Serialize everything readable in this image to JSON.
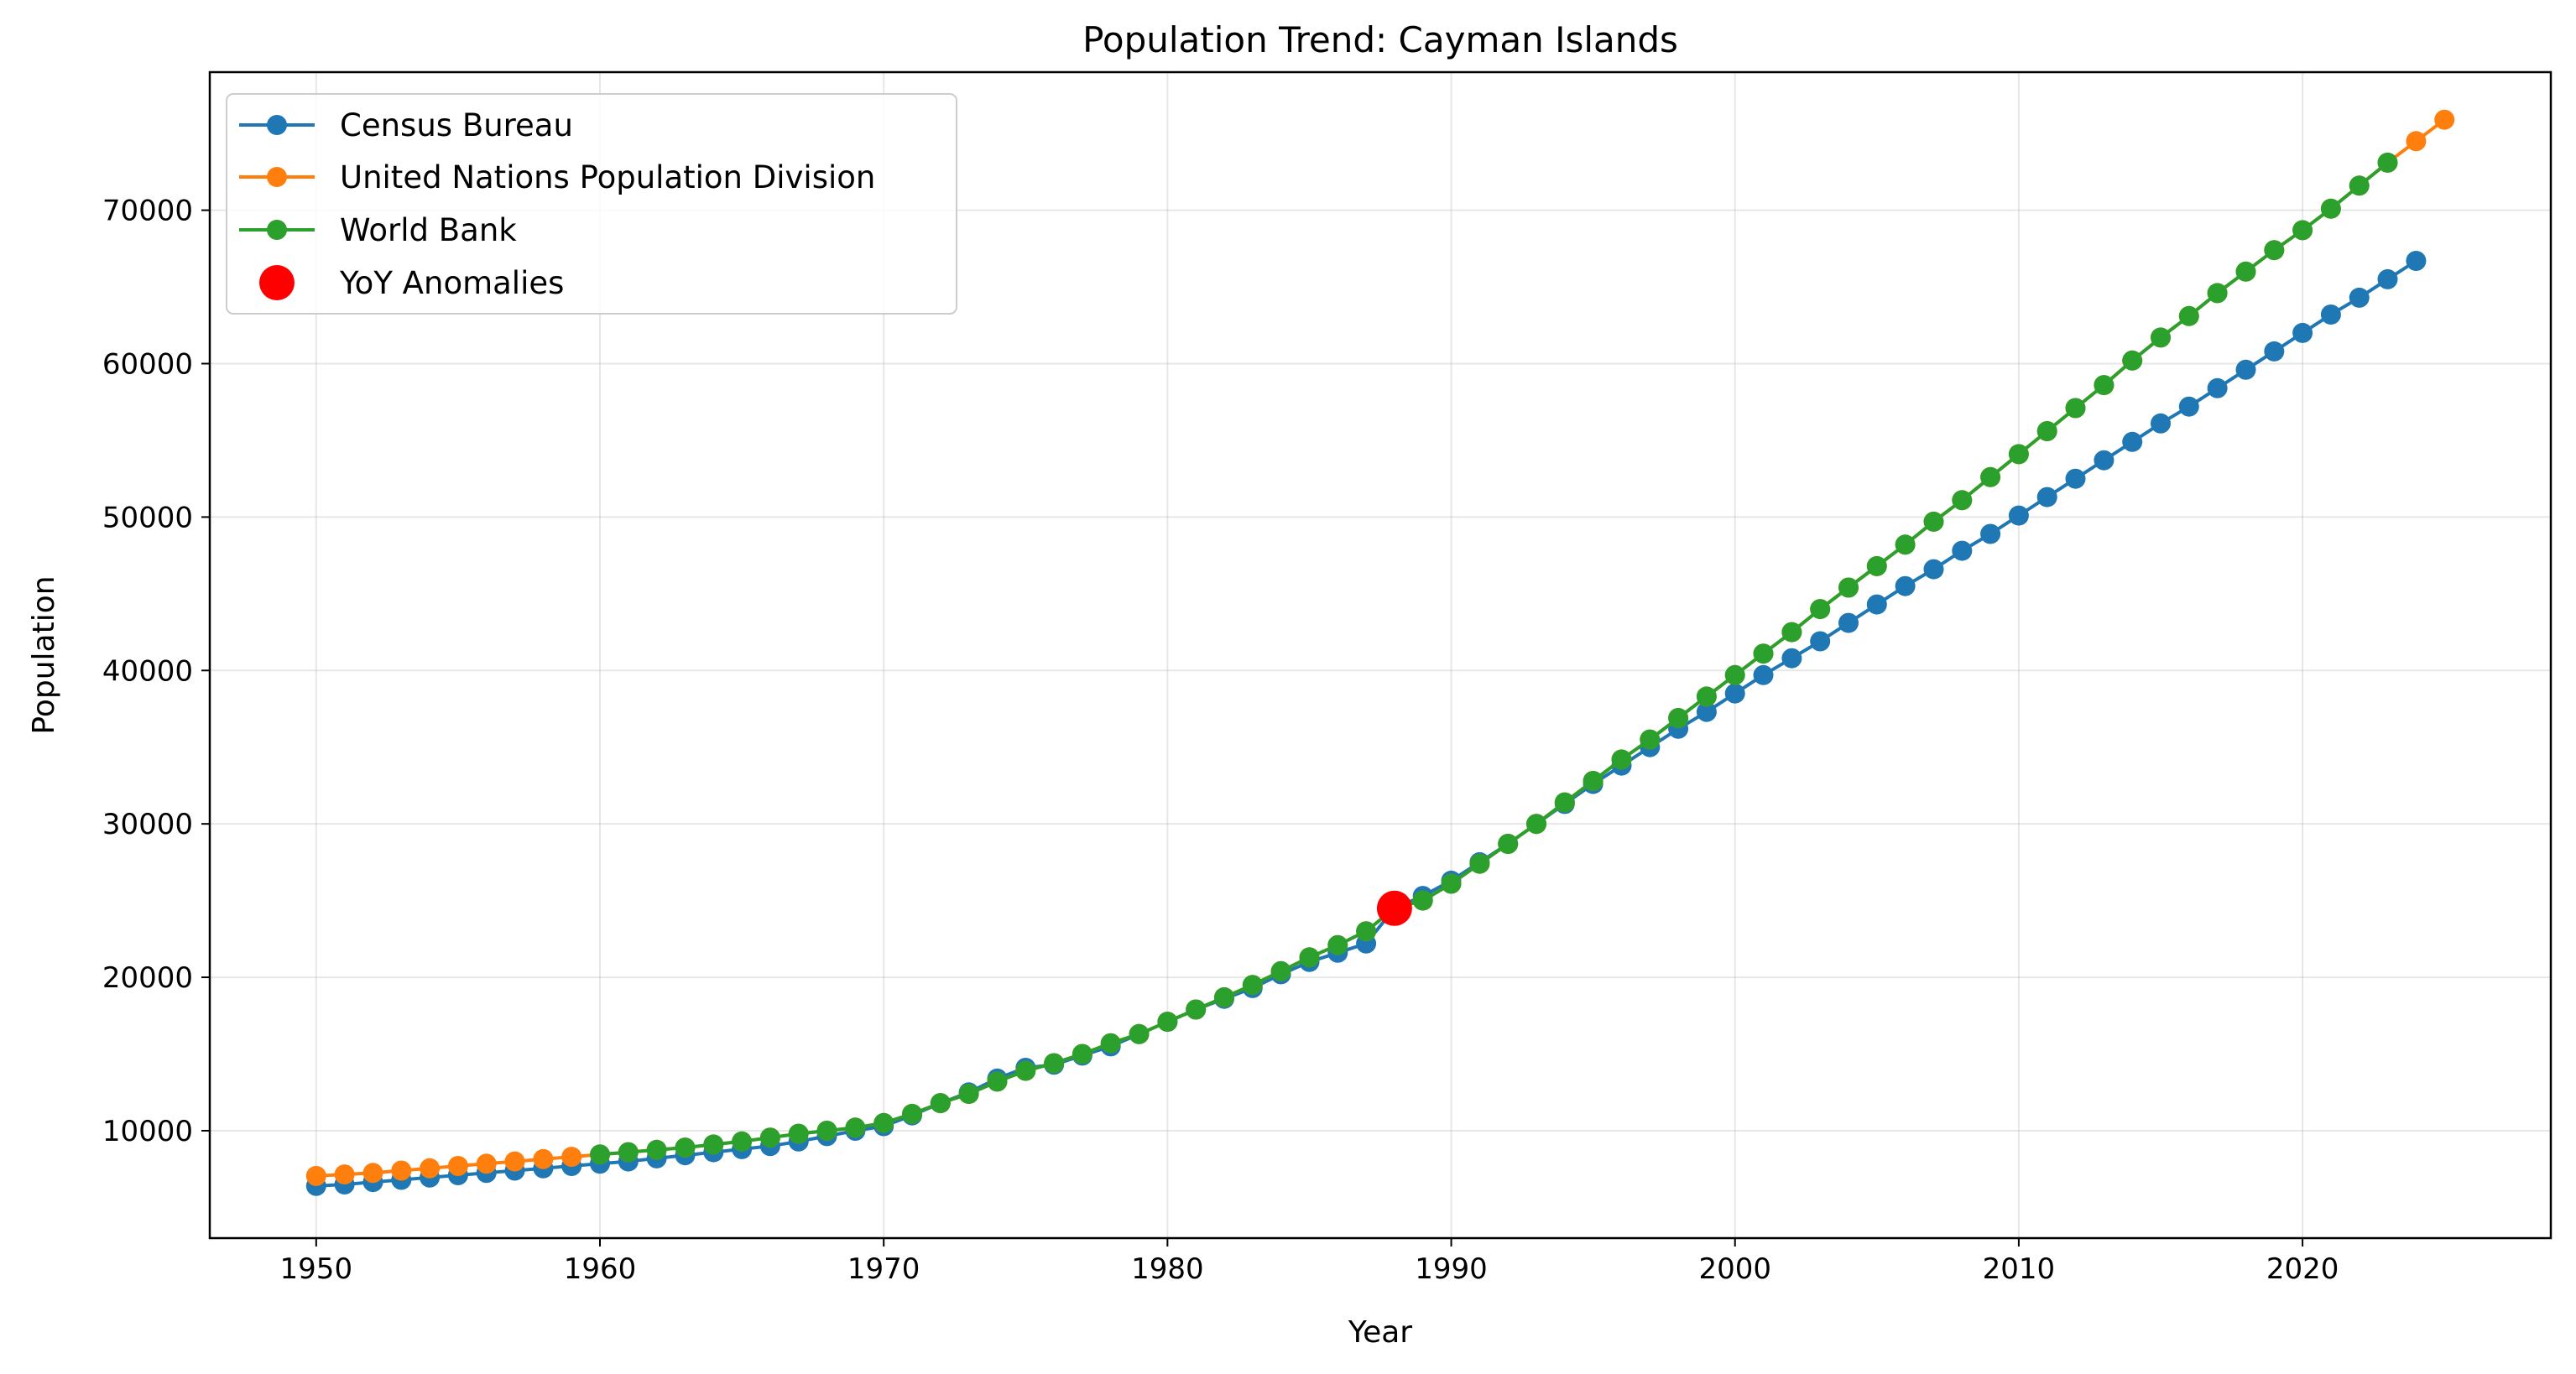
{
  "chart_data": {
    "type": "line",
    "title": "Population Trend: Cayman Islands",
    "xlabel": "Year",
    "ylabel": "Population",
    "xlim": [
      1946.25,
      2028.75
    ],
    "ylim": [
      3000,
      79000
    ],
    "xticks": [
      1950,
      1960,
      1970,
      1980,
      1990,
      2000,
      2010,
      2020
    ],
    "yticks": [
      10000,
      20000,
      30000,
      40000,
      50000,
      60000,
      70000
    ],
    "grid": true,
    "legend_position": "upper-left",
    "series": [
      {
        "name": "Census Bureau",
        "color": "#1f77b4",
        "x": [
          1950,
          1951,
          1952,
          1953,
          1954,
          1955,
          1956,
          1957,
          1958,
          1959,
          1960,
          1961,
          1962,
          1963,
          1964,
          1965,
          1966,
          1967,
          1968,
          1969,
          1970,
          1971,
          1972,
          1973,
          1974,
          1975,
          1976,
          1977,
          1978,
          1979,
          1980,
          1981,
          1982,
          1983,
          1984,
          1985,
          1986,
          1987,
          1988,
          1989,
          1990,
          1991,
          1992,
          1993,
          1994,
          1995,
          1996,
          1997,
          1998,
          1999,
          2000,
          2001,
          2002,
          2003,
          2004,
          2005,
          2006,
          2007,
          2008,
          2009,
          2010,
          2011,
          2012,
          2013,
          2014,
          2015,
          2016,
          2017,
          2018,
          2019,
          2020,
          2021,
          2022,
          2023,
          2024
        ],
        "y": [
          6400,
          6500,
          6650,
          6800,
          6950,
          7100,
          7250,
          7400,
          7550,
          7700,
          7850,
          8000,
          8200,
          8400,
          8600,
          8800,
          9000,
          9300,
          9650,
          10000,
          10300,
          11000,
          11800,
          12500,
          13400,
          14100,
          14300,
          14900,
          15500,
          16300,
          17100,
          17900,
          18600,
          19300,
          20200,
          21000,
          21600,
          22200,
          24500,
          25300,
          26300,
          27500,
          28700,
          30000,
          31300,
          32600,
          33800,
          35000,
          36200,
          37300,
          38500,
          39700,
          40800,
          41900,
          43100,
          44300,
          45500,
          46600,
          47800,
          48900,
          50100,
          51300,
          52500,
          53700,
          54900,
          56100,
          57200,
          58400,
          59600,
          60800,
          62000,
          63200,
          64300,
          65500,
          66700
        ]
      },
      {
        "name": "United Nations Population Division",
        "color": "#ff7f0e",
        "x": [
          1950,
          1951,
          1952,
          1953,
          1954,
          1955,
          1956,
          1957,
          1958,
          1959,
          1960,
          1961,
          1962,
          1963,
          1964,
          1965,
          1966,
          1967,
          1968,
          1969,
          1970,
          1971,
          1972,
          1973,
          1974,
          1975,
          1976,
          1977,
          1978,
          1979,
          1980,
          1981,
          1982,
          1983,
          1984,
          1985,
          1986,
          1987,
          1988,
          1989,
          1990,
          1991,
          1992,
          1993,
          1994,
          1995,
          1996,
          1997,
          1998,
          1999,
          2000,
          2001,
          2002,
          2003,
          2004,
          2005,
          2006,
          2007,
          2008,
          2009,
          2010,
          2011,
          2012,
          2013,
          2014,
          2015,
          2016,
          2017,
          2018,
          2019,
          2020,
          2021,
          2022,
          2023,
          2024,
          2025
        ],
        "y": [
          7050,
          7150,
          7250,
          7400,
          7550,
          7700,
          7850,
          8000,
          8150,
          8300,
          8450,
          8600,
          8750,
          8900,
          9100,
          9300,
          9550,
          9800,
          10000,
          10200,
          10500,
          11100,
          11800,
          12400,
          13200,
          13900,
          14400,
          15000,
          15700,
          16300,
          17100,
          17900,
          18700,
          19500,
          20400,
          21300,
          22100,
          23000,
          24500,
          25000,
          26100,
          27400,
          28700,
          30000,
          31400,
          32800,
          34200,
          35500,
          36900,
          38300,
          39700,
          41100,
          42500,
          44000,
          45400,
          46800,
          48200,
          49700,
          51100,
          52600,
          54100,
          55600,
          57100,
          58600,
          60200,
          61700,
          63100,
          64600,
          66000,
          67400,
          68700,
          70100,
          71600,
          73100,
          74500,
          75900
        ]
      },
      {
        "name": "World Bank",
        "color": "#2ca02c",
        "x": [
          1960,
          1961,
          1962,
          1963,
          1964,
          1965,
          1966,
          1967,
          1968,
          1969,
          1970,
          1971,
          1972,
          1973,
          1974,
          1975,
          1976,
          1977,
          1978,
          1979,
          1980,
          1981,
          1982,
          1983,
          1984,
          1985,
          1986,
          1987,
          1988,
          1989,
          1990,
          1991,
          1992,
          1993,
          1994,
          1995,
          1996,
          1997,
          1998,
          1999,
          2000,
          2001,
          2002,
          2003,
          2004,
          2005,
          2006,
          2007,
          2008,
          2009,
          2010,
          2011,
          2012,
          2013,
          2014,
          2015,
          2016,
          2017,
          2018,
          2019,
          2020,
          2021,
          2022,
          2023
        ],
        "y": [
          8450,
          8600,
          8750,
          8900,
          9100,
          9300,
          9550,
          9800,
          10000,
          10200,
          10500,
          11100,
          11800,
          12400,
          13200,
          13900,
          14400,
          15000,
          15700,
          16300,
          17100,
          17900,
          18700,
          19500,
          20400,
          21300,
          22100,
          23000,
          24500,
          25000,
          26100,
          27400,
          28700,
          30000,
          31400,
          32800,
          34200,
          35500,
          36900,
          38300,
          39700,
          41100,
          42500,
          44000,
          45400,
          46800,
          48200,
          49700,
          51100,
          52600,
          54100,
          55600,
          57100,
          58600,
          60200,
          61700,
          63100,
          64600,
          66000,
          67400,
          68700,
          70100,
          71600,
          73100
        ]
      }
    ],
    "anomalies": {
      "name": "YoY Anomalies",
      "color": "#ff0000",
      "x": [
        1988
      ],
      "y": [
        24500
      ]
    }
  }
}
